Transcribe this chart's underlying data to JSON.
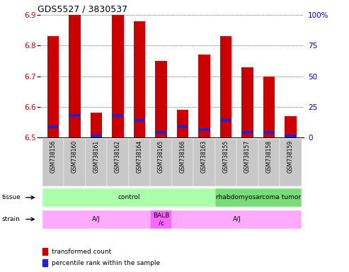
{
  "title": "GDS5527 / 3830537",
  "samples": [
    "GSM738156",
    "GSM738160",
    "GSM738161",
    "GSM738162",
    "GSM738164",
    "GSM738165",
    "GSM738166",
    "GSM738163",
    "GSM738155",
    "GSM738157",
    "GSM738158",
    "GSM738159"
  ],
  "red_values": [
    6.83,
    6.9,
    6.58,
    6.9,
    6.88,
    6.75,
    6.59,
    6.77,
    6.83,
    6.73,
    6.7,
    6.57
  ],
  "blue_values": [
    6.535,
    6.572,
    6.505,
    6.572,
    6.555,
    6.515,
    6.535,
    6.525,
    6.555,
    6.515,
    6.515,
    6.505
  ],
  "blue_heights": [
    0.01,
    0.01,
    0.01,
    0.01,
    0.01,
    0.01,
    0.01,
    0.01,
    0.01,
    0.01,
    0.01,
    0.01
  ],
  "ymin": 6.5,
  "ymax": 6.9,
  "y_ticks": [
    6.5,
    6.6,
    6.7,
    6.8,
    6.9
  ],
  "y2_ticks": [
    0,
    25,
    50,
    75,
    100
  ],
  "bar_color": "#cc0000",
  "blue_color": "#2222cc",
  "tissue_groups": [
    {
      "label": "control",
      "start": 0,
      "end": 8,
      "color": "#aaffaa"
    },
    {
      "label": "rhabdomyosarcoma tumor",
      "start": 8,
      "end": 12,
      "color": "#77dd77"
    }
  ],
  "strain_groups": [
    {
      "label": "A/J",
      "start": 0,
      "end": 5,
      "color": "#ffaaff"
    },
    {
      "label": "BALB\n/c",
      "start": 5,
      "end": 6,
      "color": "#ff66ff"
    },
    {
      "label": "A/J",
      "start": 6,
      "end": 12,
      "color": "#ffaaff"
    }
  ],
  "legend_red": "transformed count",
  "legend_blue": "percentile rank within the sample",
  "left_color": "#cc0000",
  "right_color": "#0000cc",
  "bar_width": 0.55,
  "background_color": "#ffffff",
  "tick_label_bg": "#c8c8c8"
}
